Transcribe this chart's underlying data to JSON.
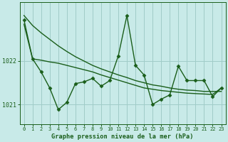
{
  "background_color": "#c8eae8",
  "grid_color": "#a0ccc8",
  "line_color": "#1a5e1a",
  "xlabel": "Graphe pression niveau de la mer (hPa)",
  "ylim": [
    1020.55,
    1023.35
  ],
  "xlim": [
    -0.5,
    23.5
  ],
  "yticks": [
    1021,
    1022
  ],
  "xticks": [
    0,
    1,
    2,
    3,
    4,
    5,
    6,
    7,
    8,
    9,
    10,
    11,
    12,
    13,
    14,
    15,
    16,
    17,
    18,
    19,
    20,
    21,
    22,
    23
  ],
  "series": [
    {
      "x": [
        0,
        1,
        2,
        3,
        4,
        5,
        6,
        7,
        8,
        9,
        10,
        11,
        12,
        13,
        14,
        15,
        16,
        17,
        18,
        19,
        20,
        21,
        22,
        23
      ],
      "y": [
        1023.05,
        1022.82,
        1022.65,
        1022.5,
        1022.35,
        1022.22,
        1022.1,
        1022.0,
        1021.9,
        1021.82,
        1021.75,
        1021.68,
        1021.62,
        1021.55,
        1021.5,
        1021.45,
        1021.42,
        1021.38,
        1021.35,
        1021.33,
        1021.32,
        1021.3,
        1021.3,
        1021.3
      ],
      "marker": null,
      "linewidth": 1.0
    },
    {
      "x": [
        0,
        1,
        2,
        3,
        4,
        5,
        6,
        7,
        8,
        9,
        10,
        11,
        12,
        13,
        14,
        15,
        16,
        17,
        18,
        19,
        20,
        21,
        22,
        23
      ],
      "y": [
        1022.85,
        1022.05,
        1022.02,
        1021.98,
        1021.95,
        1021.9,
        1021.85,
        1021.8,
        1021.75,
        1021.68,
        1021.62,
        1021.56,
        1021.5,
        1021.44,
        1021.38,
        1021.35,
        1021.32,
        1021.3,
        1021.28,
        1021.26,
        1021.25,
        1021.24,
        1021.23,
        1021.38
      ],
      "marker": null,
      "linewidth": 1.0
    },
    {
      "x": [
        0,
        1,
        2,
        3,
        4,
        5,
        6,
        7,
        8,
        9,
        10,
        11,
        12,
        13,
        14,
        15,
        16,
        17,
        18,
        19,
        20,
        21,
        22,
        23
      ],
      "y": [
        1022.95,
        1022.05,
        1021.75,
        1021.38,
        1020.88,
        1021.05,
        1021.48,
        1021.52,
        1021.6,
        1021.42,
        1021.55,
        1022.12,
        1023.05,
        1021.9,
        1021.68,
        1021.0,
        1021.12,
        1021.22,
        1021.88,
        1021.55,
        1021.55,
        1021.55,
        1021.18,
        1021.38
      ],
      "marker": "D",
      "linewidth": 1.0
    }
  ]
}
